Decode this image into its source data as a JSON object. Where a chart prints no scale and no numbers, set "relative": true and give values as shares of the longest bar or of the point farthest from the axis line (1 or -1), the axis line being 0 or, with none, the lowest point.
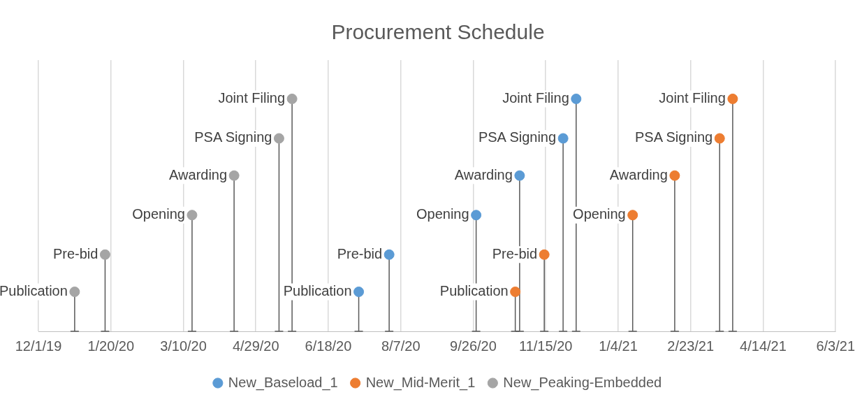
{
  "chart_data": {
    "type": "lollipop",
    "title": "Procurement Schedule",
    "relative": true,
    "xlim": [
      "2019-12-01",
      "2021-06-03"
    ],
    "xticks": [
      {
        "value": "2019-12-01",
        "label": "12/1/19"
      },
      {
        "value": "2020-01-20",
        "label": "1/20/20"
      },
      {
        "value": "2020-03-10",
        "label": "3/10/20"
      },
      {
        "value": "2020-04-29",
        "label": "4/29/20"
      },
      {
        "value": "2020-06-18",
        "label": "6/18/20"
      },
      {
        "value": "2020-08-07",
        "label": "8/7/20"
      },
      {
        "value": "2020-09-26",
        "label": "9/26/20"
      },
      {
        "value": "2020-11-15",
        "label": "11/15/20"
      },
      {
        "value": "2021-01-04",
        "label": "1/4/21"
      },
      {
        "value": "2021-02-23",
        "label": "2/23/21"
      },
      {
        "value": "2021-04-14",
        "label": "4/14/21"
      },
      {
        "value": "2021-06-03",
        "label": "6/3/21"
      }
    ],
    "grid": "x",
    "legend": "bottom",
    "marker": "circle",
    "series": [
      {
        "name": "New_Baseload_1",
        "color": "#5b9bd5",
        "x": [
          "2020-07-09",
          "2020-07-30",
          "2020-09-28",
          "2020-10-28",
          "2020-11-27",
          "2020-12-06"
        ],
        "values": [
          0.17,
          0.33,
          0.5,
          0.67,
          0.83,
          1
        ]
      },
      {
        "name": "New_Mid-Merit_1",
        "color": "#ed7d31",
        "x": [
          "2020-10-25",
          "2020-11-14",
          "2021-01-14",
          "2021-02-12",
          "2021-03-15",
          "2021-03-24"
        ],
        "values": [
          0.17,
          0.33,
          0.5,
          0.67,
          0.83,
          1
        ]
      },
      {
        "name": "New_Peaking-Embedded",
        "color": "#a5a5a5",
        "x": [
          "2019-12-26",
          "2020-01-16",
          "2020-03-16",
          "2020-04-14",
          "2020-05-15",
          "2020-05-24"
        ],
        "values": [
          0.17,
          0.33,
          0.5,
          0.67,
          0.83,
          1
        ]
      }
    ],
    "annotations": [
      {
        "text": "Publication",
        "x": "2019-12-26",
        "y": 0.17
      },
      {
        "text": "Pre-bid",
        "x": "2020-01-16",
        "y": 0.33
      },
      {
        "text": "Opening",
        "x": "2020-03-16",
        "y": 0.5
      },
      {
        "text": "Awarding",
        "x": "2020-04-14",
        "y": 0.67
      },
      {
        "text": "PSA Signing",
        "x": "2020-05-15",
        "y": 0.83
      },
      {
        "text": "Joint Filing",
        "x": "2020-05-24",
        "y": 1
      },
      {
        "text": "Publication",
        "x": "2020-07-09",
        "y": 0.17
      },
      {
        "text": "Pre-bid",
        "x": "2020-07-30",
        "y": 0.33
      },
      {
        "text": "Opening",
        "x": "2020-09-28",
        "y": 0.5
      },
      {
        "text": "Awarding",
        "x": "2020-10-28",
        "y": 0.67
      },
      {
        "text": "PSA Signing",
        "x": "2020-11-27",
        "y": 0.83
      },
      {
        "text": "Joint Filing",
        "x": "2020-12-06",
        "y": 1
      },
      {
        "text": "Publication",
        "x": "2020-10-25",
        "y": 0.17
      },
      {
        "text": "Pre-bid",
        "x": "2020-11-14",
        "y": 0.33
      },
      {
        "text": "Opening",
        "x": "2021-01-14",
        "y": 0.5
      },
      {
        "text": "Awarding",
        "x": "2021-02-12",
        "y": 0.67
      },
      {
        "text": "PSA Signing",
        "x": "2021-03-15",
        "y": 0.83
      },
      {
        "text": "Joint Filing",
        "x": "2021-03-24",
        "y": 1
      }
    ]
  }
}
